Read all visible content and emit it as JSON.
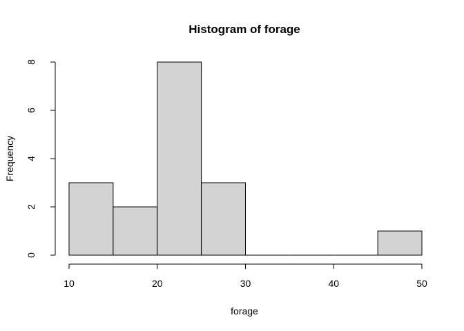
{
  "chart_data": {
    "type": "bar",
    "title": "Histogram of forage",
    "xlabel": "forage",
    "ylabel": "Frequency",
    "bins": [
      {
        "start": 10,
        "end": 15,
        "count": 3
      },
      {
        "start": 15,
        "end": 20,
        "count": 2
      },
      {
        "start": 20,
        "end": 25,
        "count": 8
      },
      {
        "start": 25,
        "end": 30,
        "count": 3
      },
      {
        "start": 30,
        "end": 35,
        "count": 0
      },
      {
        "start": 35,
        "end": 40,
        "count": 0
      },
      {
        "start": 40,
        "end": 45,
        "count": 0
      },
      {
        "start": 45,
        "end": 50,
        "count": 1
      }
    ],
    "xlim": [
      10,
      50
    ],
    "ylim": [
      0,
      8
    ],
    "xticks": [
      "10",
      "20",
      "30",
      "40",
      "50"
    ],
    "yticks": [
      "0",
      "2",
      "4",
      "6",
      "8"
    ],
    "bar_color": "#d3d3d3",
    "grid": false,
    "legend": "none"
  }
}
